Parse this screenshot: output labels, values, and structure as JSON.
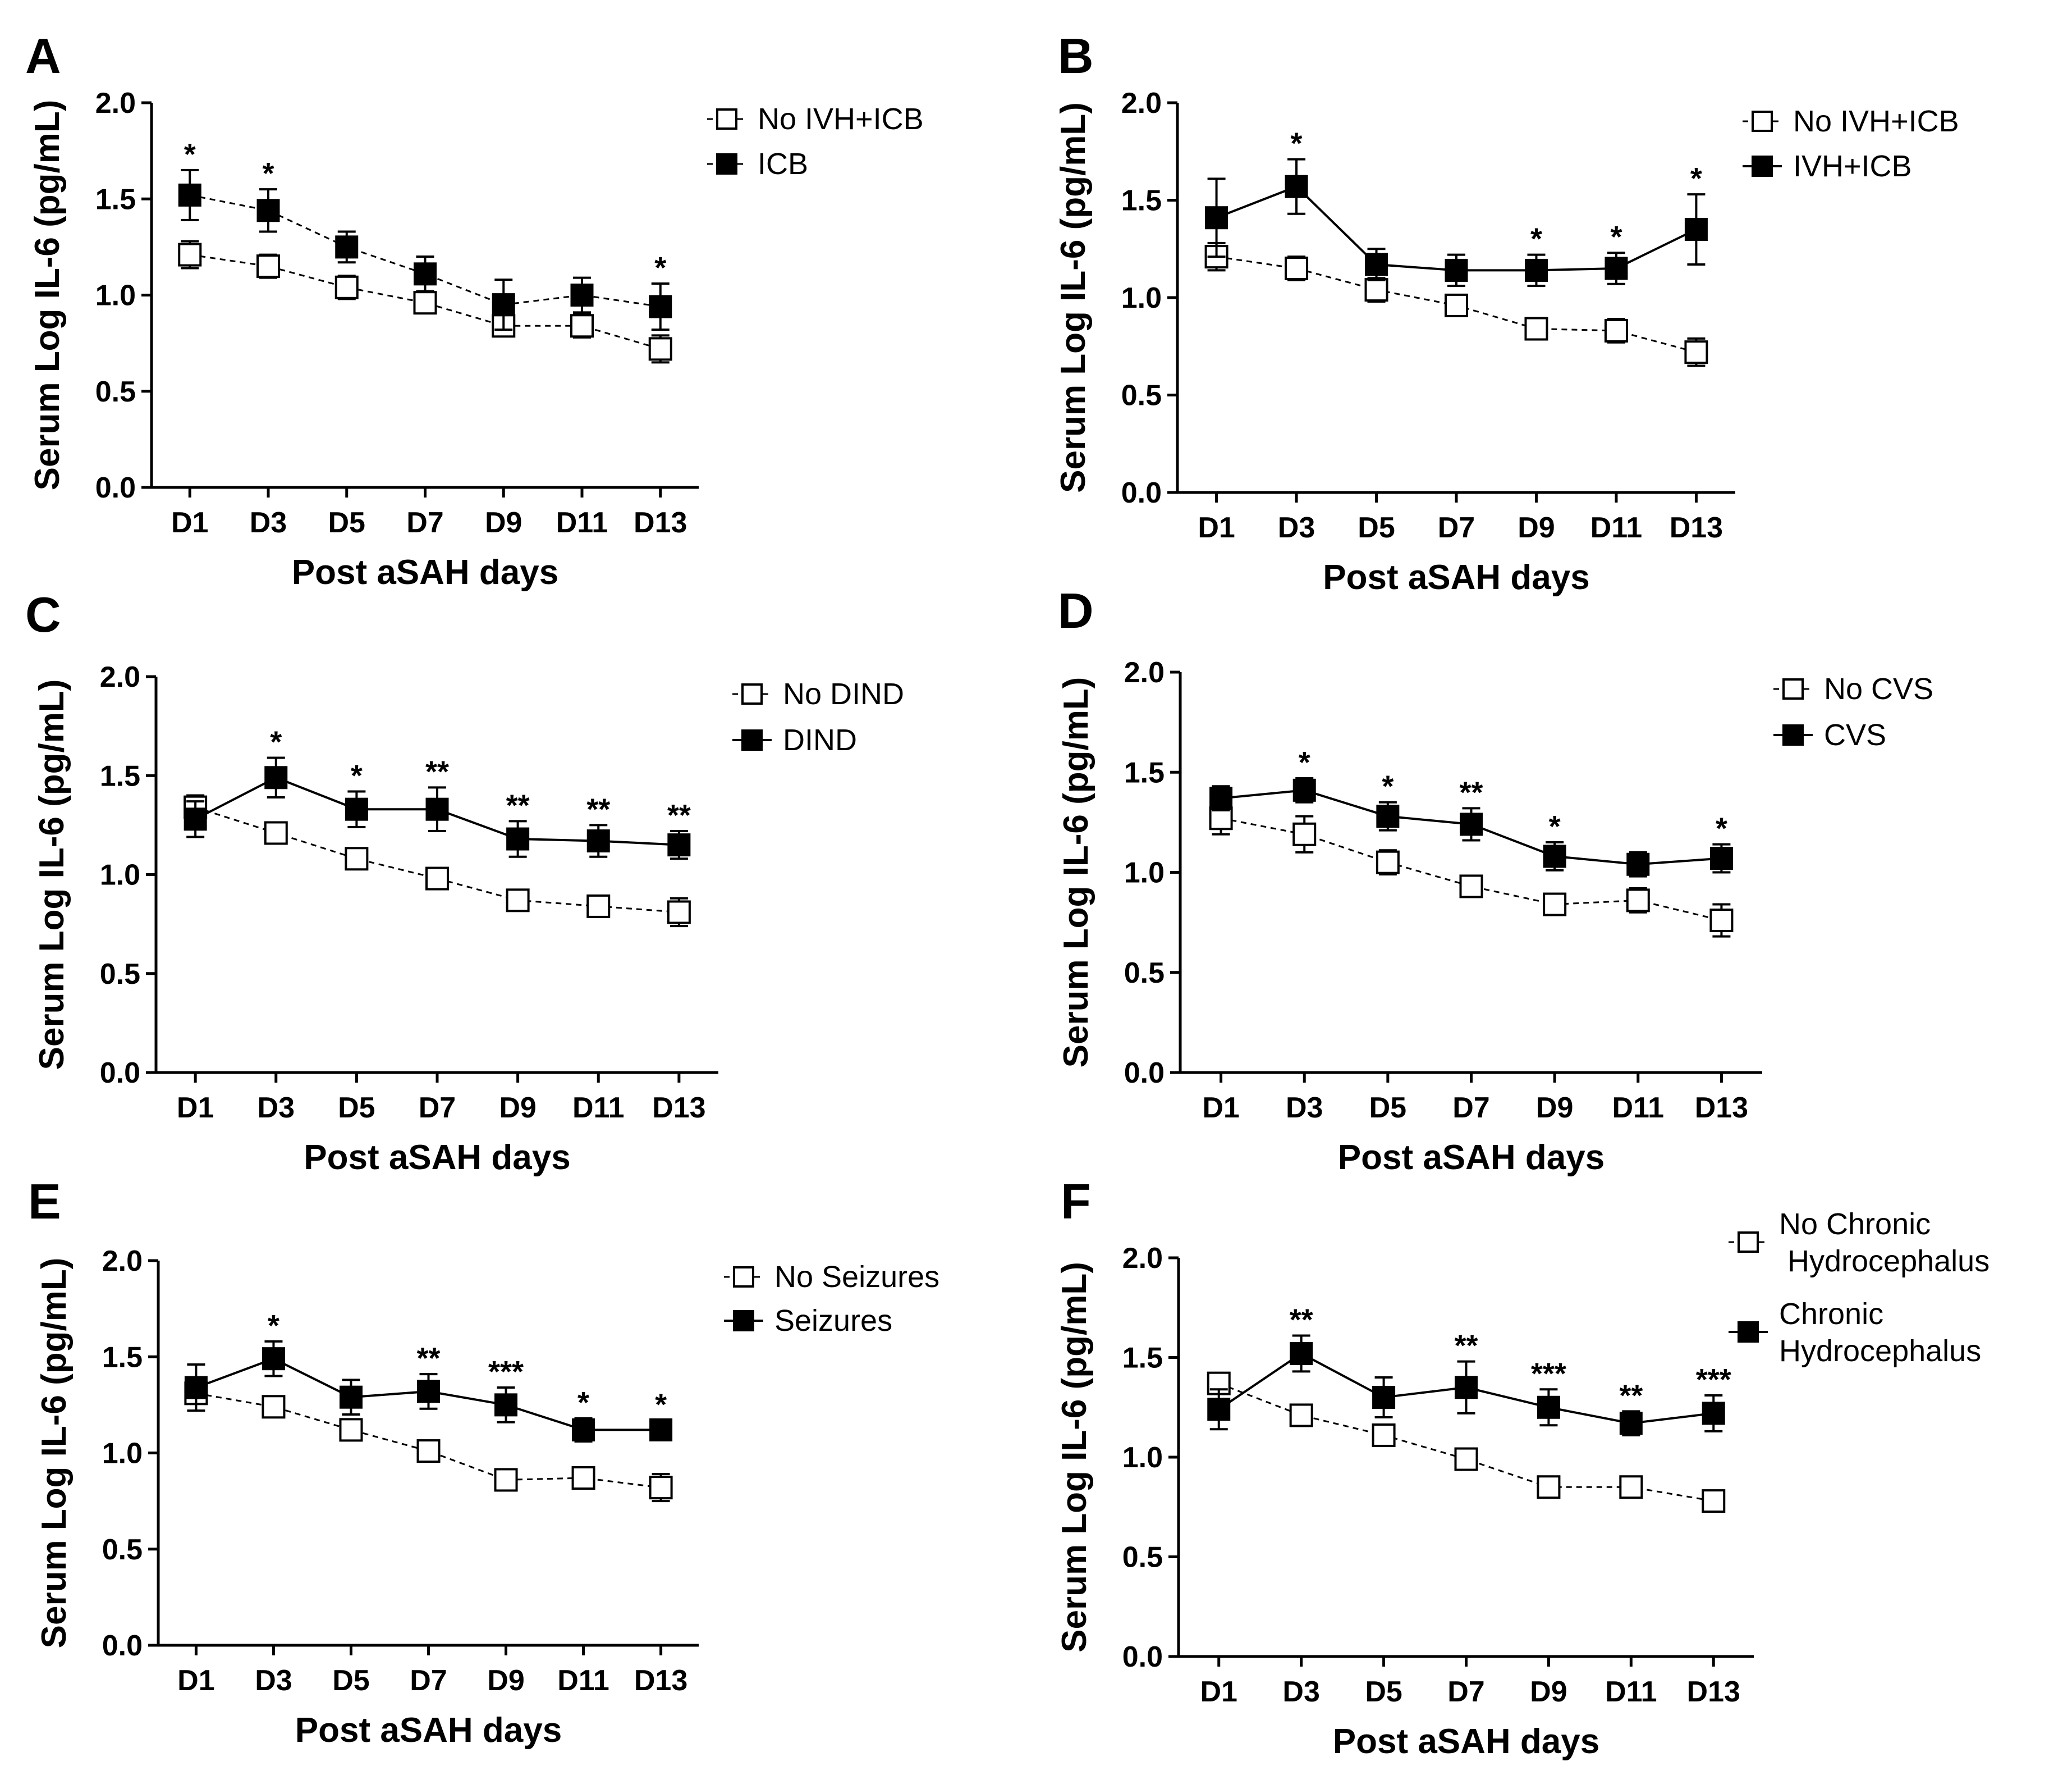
{
  "figure": {
    "colors": {
      "control_fill": "#ffffff",
      "case_fill": "#000000",
      "line": "#000000"
    },
    "panels": [
      {
        "letter": "A",
        "chart_data": {
          "type": "line",
          "xlabel": "Post aSAH days",
          "ylabel": "Serum Log IL-6 (pg/mL)",
          "ylim": [
            0,
            2
          ],
          "yticks": [
            "0.0",
            "0.5",
            "1.0",
            "1.5",
            "2.0"
          ],
          "categories": [
            "D1",
            "D3",
            "D5",
            "D7",
            "D9",
            "D11",
            "D13"
          ],
          "legend_position": "right",
          "series": [
            {
              "name": "No IVH+ICB",
              "legend_lines": [
                "No IVH+ICB"
              ],
              "marker": "open-square",
              "line": "dashed",
              "values": [
                1.21,
                1.15,
                1.04,
                0.96,
                0.84,
                0.84,
                0.72
              ],
              "errors": [
                0.07,
                0.06,
                0.06,
                0.05,
                0.05,
                0.06,
                0.07
              ]
            },
            {
              "name": "ICB",
              "legend_lines": [
                "ICB"
              ],
              "marker": "filled-square",
              "line": "dashed",
              "values": [
                1.52,
                1.44,
                1.25,
                1.11,
                0.95,
                1.0,
                0.94
              ],
              "errors": [
                0.13,
                0.11,
                0.08,
                0.09,
                0.13,
                0.09,
                0.12
              ]
            }
          ],
          "annotations": [
            "*",
            "*",
            "",
            "",
            "",
            "",
            "*"
          ]
        }
      },
      {
        "letter": "B",
        "chart_data": {
          "type": "line",
          "xlabel": "Post aSAH days",
          "ylabel": "Serum Log IL-6 (pg/mL)",
          "ylim": [
            0,
            2
          ],
          "yticks": [
            "0.0",
            "0.5",
            "1.0",
            "1.5",
            "2.0"
          ],
          "categories": [
            "D1",
            "D3",
            "D5",
            "D7",
            "D9",
            "D11",
            "D13"
          ],
          "legend_position": "right",
          "series": [
            {
              "name": "No IVH+ICB",
              "legend_lines": [
                "No IVH+ICB"
              ],
              "marker": "open-square",
              "line": "dashed",
              "values": [
                1.21,
                1.15,
                1.04,
                0.96,
                0.84,
                0.83,
                0.72
              ],
              "errors": [
                0.07,
                0.06,
                0.06,
                0.05,
                0.05,
                0.06,
                0.07
              ]
            },
            {
              "name": "IVH+ICB",
              "legend_lines": [
                "IVH+ICB"
              ],
              "marker": "filled-square",
              "line": "solid",
              "values": [
                1.41,
                1.57,
                1.17,
                1.14,
                1.14,
                1.15,
                1.35
              ],
              "errors": [
                0.2,
                0.14,
                0.08,
                0.08,
                0.08,
                0.08,
                0.18
              ]
            }
          ],
          "annotations": [
            "",
            "*",
            "",
            "",
            "*",
            "*",
            "*"
          ]
        }
      },
      {
        "letter": "C",
        "chart_data": {
          "type": "line",
          "xlabel": "Post aSAH days",
          "ylabel": "Serum Log IL-6 (pg/mL)",
          "ylim": [
            0,
            2
          ],
          "yticks": [
            "0.0",
            "0.5",
            "1.0",
            "1.5",
            "2.0"
          ],
          "categories": [
            "D1",
            "D3",
            "D5",
            "D7",
            "D9",
            "D11",
            "D13"
          ],
          "legend_position": "right",
          "series": [
            {
              "name": "No DIND",
              "legend_lines": [
                "No DIND"
              ],
              "marker": "open-square",
              "line": "dashed",
              "values": [
                1.34,
                1.21,
                1.08,
                0.98,
                0.87,
                0.84,
                0.81
              ],
              "errors": [
                0.06,
                0.05,
                0.04,
                0.03,
                0.03,
                0.03,
                0.07
              ]
            },
            {
              "name": "DIND",
              "legend_lines": [
                "DIND"
              ],
              "marker": "filled-square",
              "line": "solid",
              "values": [
                1.28,
                1.49,
                1.33,
                1.33,
                1.18,
                1.17,
                1.15
              ],
              "errors": [
                0.09,
                0.1,
                0.09,
                0.11,
                0.09,
                0.08,
                0.07
              ]
            }
          ],
          "annotations": [
            "",
            "*",
            "*",
            "**",
            "**",
            "**",
            "**"
          ]
        }
      },
      {
        "letter": "D",
        "chart_data": {
          "type": "line",
          "xlabel": "Post aSAH days",
          "ylabel": "Serum Log IL-6 (pg/mL)",
          "ylim": [
            0,
            2
          ],
          "yticks": [
            "0.0",
            "0.5",
            "1.0",
            "1.5",
            "2.0"
          ],
          "categories": [
            "D1",
            "D3",
            "D5",
            "D7",
            "D9",
            "D11",
            "D13"
          ],
          "legend_position": "right",
          "series": [
            {
              "name": "No CVS",
              "legend_lines": [
                "No CVS"
              ],
              "marker": "open-square",
              "line": "dashed",
              "values": [
                1.27,
                1.19,
                1.05,
                0.93,
                0.84,
                0.86,
                0.76
              ],
              "errors": [
                0.08,
                0.09,
                0.06,
                0.04,
                0.05,
                0.06,
                0.08
              ]
            },
            {
              "name": "CVS",
              "legend_lines": [
                "CVS"
              ],
              "marker": "filled-square",
              "line": "solid",
              "values": [
                1.37,
                1.41,
                1.28,
                1.24,
                1.08,
                1.04,
                1.07
              ],
              "errors": [
                0.06,
                0.06,
                0.07,
                0.08,
                0.07,
                0.06,
                0.07
              ]
            }
          ],
          "annotations": [
            "",
            "*",
            "*",
            "**",
            "*",
            "",
            "*"
          ]
        }
      },
      {
        "letter": "E",
        "chart_data": {
          "type": "line",
          "xlabel": "Post aSAH days",
          "ylabel": "Serum Log IL-6 (pg/mL)",
          "ylim": [
            0,
            2
          ],
          "yticks": [
            "0.0",
            "0.5",
            "1.0",
            "1.5",
            "2.0"
          ],
          "categories": [
            "D1",
            "D3",
            "D5",
            "D7",
            "D9",
            "D11",
            "D13"
          ],
          "legend_position": "right",
          "series": [
            {
              "name": "No Seizures",
              "legend_lines": [
                "No Seizures"
              ],
              "marker": "open-square",
              "line": "dashed",
              "values": [
                1.31,
                1.24,
                1.12,
                1.01,
                0.86,
                0.87,
                0.82
              ],
              "errors": [
                0.05,
                0.05,
                0.05,
                0.05,
                0.03,
                0.04,
                0.07
              ]
            },
            {
              "name": "Seizures",
              "legend_lines": [
                "Seizures"
              ],
              "marker": "filled-square",
              "line": "solid",
              "values": [
                1.34,
                1.49,
                1.29,
                1.32,
                1.25,
                1.12,
                1.12
              ],
              "errors": [
                0.12,
                0.09,
                0.09,
                0.09,
                0.09,
                0.06,
                0.05
              ]
            }
          ],
          "annotations": [
            "",
            "*",
            "",
            "**",
            "***",
            "*",
            "*"
          ]
        }
      },
      {
        "letter": "F",
        "chart_data": {
          "type": "line",
          "xlabel": "Post aSAH days",
          "ylabel": "Serum Log IL-6 (pg/mL)",
          "ylim": [
            0,
            2
          ],
          "yticks": [
            "0.0",
            "0.5",
            "1.0",
            "1.5",
            "2.0"
          ],
          "categories": [
            "D1",
            "D3",
            "D5",
            "D7",
            "D9",
            "D11",
            "D13"
          ],
          "legend_position": "right",
          "series": [
            {
              "name": "No Chronic Hydrocephalus",
              "legend_lines": [
                "No Chronic",
                " Hydrocephalus"
              ],
              "marker": "open-square",
              "line": "dashed",
              "values": [
                1.37,
                1.21,
                1.11,
                0.99,
                0.85,
                0.85,
                0.78
              ],
              "errors": [
                0.05,
                0.04,
                0.04,
                0.03,
                0.03,
                0.03,
                0.05
              ]
            },
            {
              "name": "Chronic Hydrocephalus",
              "legend_lines": [
                "Chronic",
                "Hydrocephalus"
              ],
              "marker": "filled-square",
              "line": "solid",
              "values": [
                1.24,
                1.52,
                1.3,
                1.35,
                1.25,
                1.17,
                1.22
              ],
              "errors": [
                0.1,
                0.09,
                0.1,
                0.13,
                0.09,
                0.06,
                0.09
              ]
            }
          ],
          "annotations": [
            "",
            "**",
            "",
            "**",
            "***",
            "**",
            "***"
          ]
        }
      }
    ]
  }
}
